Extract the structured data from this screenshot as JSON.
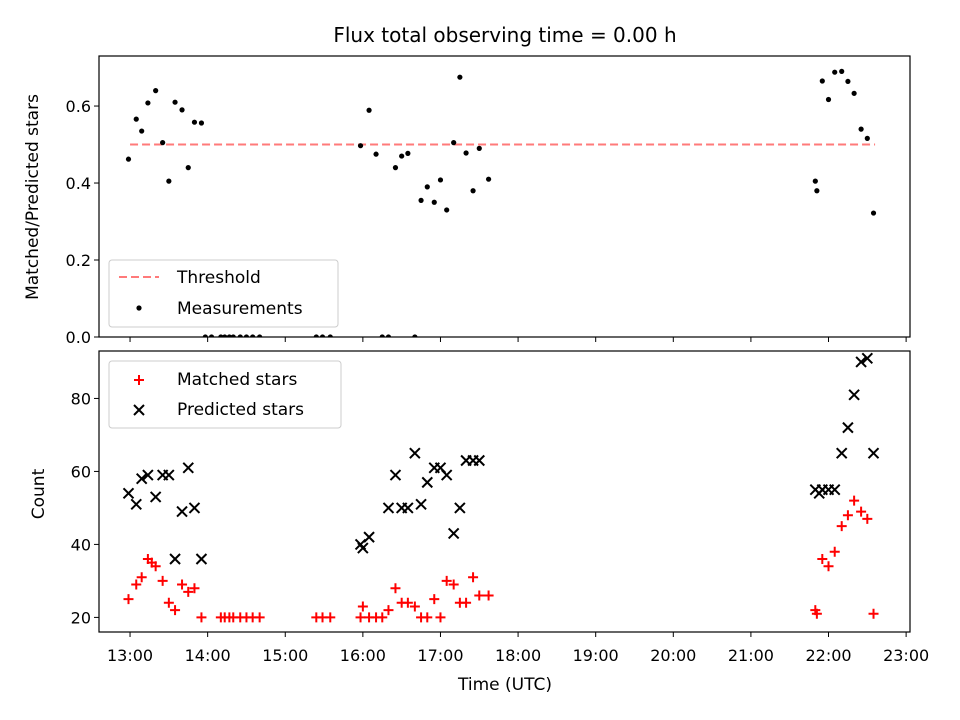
{
  "chart_data": [
    {
      "type": "scatter",
      "title": "Flux total observing time = 0.00 h",
      "xlabel": "",
      "ylabel": "Matched/Predicted stars",
      "xlim": [
        12.6,
        23.05
      ],
      "ylim": [
        0.0,
        0.73
      ],
      "yticks": [
        "0.0",
        "0.2",
        "0.4",
        "0.6"
      ],
      "ytick_values": [
        0.0,
        0.2,
        0.4,
        0.6
      ],
      "threshold": {
        "name": "Threshold",
        "value": 0.5,
        "x_start": 13.0,
        "x_end": 22.6,
        "color": "#ff7a7a"
      },
      "legend": [
        "Threshold",
        "Measurements"
      ],
      "legend_position": "lower-left",
      "series": [
        {
          "name": "Measurements",
          "color": "#000000",
          "marker": "dot",
          "x": [
            12.98,
            13.08,
            13.15,
            13.23,
            13.33,
            13.42,
            13.5,
            13.58,
            13.67,
            13.75,
            13.83,
            13.92,
            13.97,
            14.05,
            14.17,
            14.22,
            14.28,
            14.33,
            14.42,
            14.5,
            14.58,
            14.67,
            15.4,
            15.48,
            15.58,
            15.97,
            16.08,
            16.17,
            16.25,
            16.33,
            16.42,
            16.5,
            16.58,
            16.67,
            16.75,
            16.83,
            16.92,
            17.0,
            17.08,
            17.17,
            17.25,
            17.33,
            17.42,
            17.5,
            17.62,
            21.83,
            21.85,
            21.92,
            22.0,
            22.08,
            22.17,
            22.25,
            22.33,
            22.42,
            22.5,
            22.58
          ],
          "y": [
            0.462,
            0.566,
            0.535,
            0.608,
            0.64,
            0.505,
            0.405,
            0.61,
            0.59,
            0.44,
            0.558,
            0.556,
            0.0,
            0.0,
            0.0,
            0.0,
            0.0,
            0.0,
            0.0,
            0.0,
            0.0,
            0.0,
            0.0,
            0.0,
            0.0,
            0.497,
            0.589,
            0.475,
            0.0,
            0.0,
            0.44,
            0.47,
            0.477,
            0.0,
            0.355,
            0.39,
            0.35,
            0.408,
            0.33,
            0.505,
            0.675,
            0.478,
            0.38,
            0.49,
            0.41,
            0.405,
            0.38,
            0.665,
            0.617,
            0.688,
            0.69,
            0.664,
            0.633,
            0.54,
            0.516,
            0.322
          ]
        }
      ]
    },
    {
      "type": "scatter",
      "title": "",
      "xlabel": "Time (UTC)",
      "ylabel": "Count",
      "xlim": [
        12.6,
        23.05
      ],
      "ylim": [
        16,
        93
      ],
      "yticks": [
        "20",
        "40",
        "60",
        "80"
      ],
      "ytick_values": [
        20,
        40,
        60,
        80
      ],
      "xticks": [
        "13:00",
        "14:00",
        "15:00",
        "16:00",
        "17:00",
        "18:00",
        "19:00",
        "20:00",
        "21:00",
        "22:00",
        "23:00"
      ],
      "xtick_values": [
        13,
        14,
        15,
        16,
        17,
        18,
        19,
        20,
        21,
        22,
        23
      ],
      "legend": [
        "Matched stars",
        "Predicted stars"
      ],
      "legend_position": "upper-left",
      "series": [
        {
          "name": "Matched stars",
          "color": "#ff0000",
          "marker": "plus",
          "x": [
            12.98,
            13.08,
            13.15,
            13.23,
            13.28,
            13.33,
            13.42,
            13.5,
            13.58,
            13.67,
            13.75,
            13.83,
            13.92,
            14.17,
            14.22,
            14.28,
            14.33,
            14.42,
            14.5,
            14.58,
            14.67,
            15.4,
            15.48,
            15.58,
            15.97,
            16.0,
            16.08,
            16.17,
            16.25,
            16.33,
            16.42,
            16.5,
            16.58,
            16.67,
            16.75,
            16.83,
            16.92,
            17.0,
            17.08,
            17.17,
            17.25,
            17.33,
            17.42,
            17.5,
            17.62,
            21.83,
            21.85,
            21.92,
            22.0,
            22.08,
            22.17,
            22.25,
            22.33,
            22.42,
            22.5,
            22.58
          ],
          "y": [
            25,
            29,
            31,
            36,
            35,
            34,
            30,
            24,
            22,
            29,
            27,
            28,
            20,
            20,
            20,
            20,
            20,
            20,
            20,
            20,
            20,
            20,
            20,
            20,
            20,
            23,
            20,
            20,
            20,
            22,
            28,
            24,
            24,
            23,
            20,
            20,
            25,
            20,
            30,
            29,
            24,
            24,
            31,
            26,
            26,
            22,
            21,
            36,
            34,
            38,
            45,
            48,
            52,
            49,
            47,
            21
          ]
        },
        {
          "name": "Predicted stars",
          "color": "#000000",
          "marker": "x",
          "x": [
            12.98,
            13.08,
            13.15,
            13.23,
            13.33,
            13.42,
            13.5,
            13.58,
            13.67,
            13.75,
            13.83,
            13.92,
            15.97,
            16.0,
            16.08,
            16.33,
            16.42,
            16.5,
            16.58,
            16.67,
            16.75,
            16.83,
            16.92,
            17.0,
            17.08,
            17.17,
            17.25,
            17.33,
            17.42,
            17.5,
            21.83,
            21.88,
            21.92,
            22.0,
            22.08,
            22.17,
            22.25,
            22.33,
            22.42,
            22.5,
            22.58
          ],
          "y": [
            54,
            51,
            58,
            59,
            53,
            59,
            59,
            36,
            49,
            61,
            50,
            36,
            40,
            39,
            42,
            50,
            59,
            50,
            50,
            65,
            51,
            57,
            61,
            61,
            59,
            43,
            50,
            63,
            63,
            63,
            55,
            54,
            55,
            55,
            55,
            65,
            72,
            81,
            90,
            91,
            65
          ]
        }
      ]
    }
  ]
}
